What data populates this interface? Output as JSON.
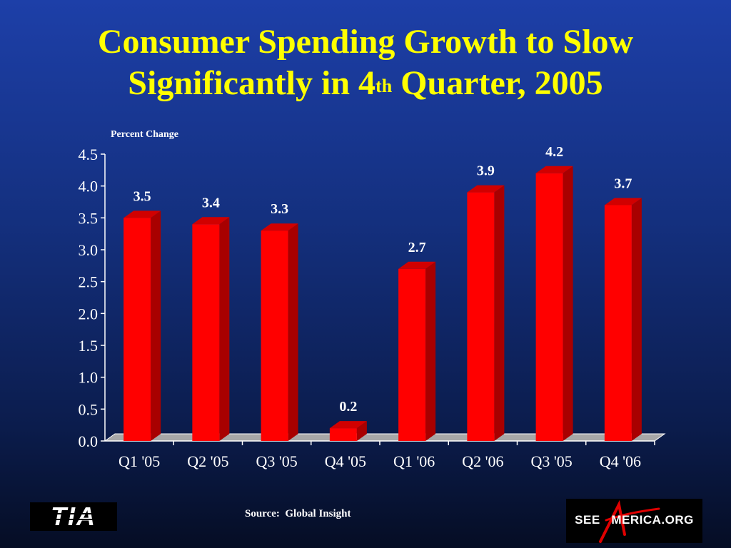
{
  "title": {
    "line1": "Consumer Spending Growth to Slow",
    "line2_prefix": "Significantly in 4",
    "line2_sup": "th",
    "line2_suffix": " Quarter, 2005"
  },
  "chart_data": {
    "type": "bar",
    "ylabel": "Percent Change",
    "categories": [
      "Q1 '05",
      "Q2 '05",
      "Q3 '05",
      "Q4 '05",
      "Q1 '06",
      "Q2 '06",
      "Q3 '05",
      "Q4 '06"
    ],
    "values": [
      3.5,
      3.4,
      3.3,
      0.2,
      2.7,
      3.9,
      4.2,
      3.7
    ],
    "data_labels": [
      "3.5",
      "3.4",
      "3.3",
      "0.2",
      "2.7",
      "3.9",
      "4.2",
      "3.7"
    ],
    "yticks": [
      "0.0",
      "0.5",
      "1.0",
      "1.5",
      "2.0",
      "2.5",
      "3.0",
      "3.5",
      "4.0",
      "4.5"
    ],
    "ylim": [
      0,
      4.5
    ],
    "bar_color": "#ff0000",
    "bar_side_color": "#a80000",
    "bar_top_color": "#d10000",
    "style": "3d",
    "grid": false
  },
  "footer": {
    "source": "Source:  Global Insight",
    "logo_left_text": "TIA",
    "logo_right_text": "SEE   MERICA.ORG"
  },
  "colors": {
    "title": "#ffff00",
    "text": "#ffffff",
    "background_top": "#1d3fa8",
    "background_bottom": "#050d24"
  }
}
